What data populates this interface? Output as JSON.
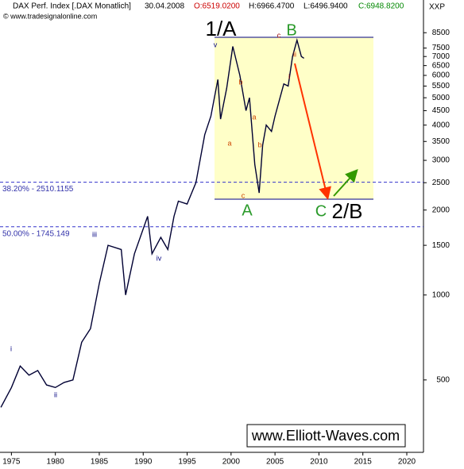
{
  "chart_data": {
    "type": "line",
    "header": {
      "instrument": "DAX Perf. Index [.DAX Monatlich]",
      "date": "30.04.2008",
      "open": "O:6519.0200",
      "high": "H:6966.4700",
      "low": "L:6496.9400",
      "close": "C:6948.8200"
    },
    "source": "© www.tradesignalonline.com",
    "y_axis_label": "XXP",
    "watermark": "www.Elliott-Waves.com",
    "log_scale": true,
    "xlim": [
      1973.7,
      2021.9
    ],
    "ylim": [
      277,
      11100
    ],
    "xticks": [
      1975,
      1980,
      1985,
      1990,
      1995,
      2000,
      2005,
      2010,
      2015,
      2020
    ],
    "yticks": [
      500,
      1000,
      1500,
      2000,
      2500,
      3000,
      3500,
      4000,
      4500,
      5000,
      5500,
      6000,
      6500,
      7000,
      7500,
      8500
    ],
    "series": [
      {
        "name": "DAX",
        "color": "#000033",
        "x": [
          1973.8,
          1975,
          1976,
          1977,
          1978,
          1979,
          1980,
          1981,
          1982,
          1983,
          1984,
          1985,
          1986,
          1987.5,
          1988,
          1989,
          1990.5,
          1991,
          1992,
          1992.8,
          1993.5,
          1994,
          1995,
          1996,
          1997,
          1997.7,
          1998.5,
          1998.8,
          1999.5,
          2000.2,
          2001,
          2001.7,
          2002.1,
          2002.7,
          2003.2,
          2003.6,
          2004,
          2004.6,
          2005,
          2006,
          2006.5,
          2007,
          2007.5,
          2008,
          2008.3
        ],
        "values": [
          400,
          470,
          560,
          520,
          540,
          480,
          470,
          490,
          500,
          680,
          760,
          1100,
          1500,
          1450,
          1000,
          1400,
          1900,
          1400,
          1600,
          1450,
          1900,
          2150,
          2100,
          2500,
          3700,
          4300,
          5800,
          4200,
          5400,
          7600,
          6000,
          4500,
          5000,
          2900,
          2300,
          3400,
          4000,
          3800,
          4300,
          5600,
          5500,
          7000,
          8000,
          7000,
          6900
        ]
      }
    ],
    "levels": [
      {
        "value": 2510.1155,
        "label": "38.20% - 2510.1155"
      },
      {
        "value": 1745.149,
        "label": "50.00% - 1745.149"
      }
    ],
    "annotations": [
      "1/A",
      "B",
      "A",
      "C",
      "2/B",
      "v",
      "i",
      "ii",
      "iii",
      "iv",
      "c",
      "ii",
      "i",
      "b",
      "a",
      "a",
      "b",
      "c"
    ]
  }
}
